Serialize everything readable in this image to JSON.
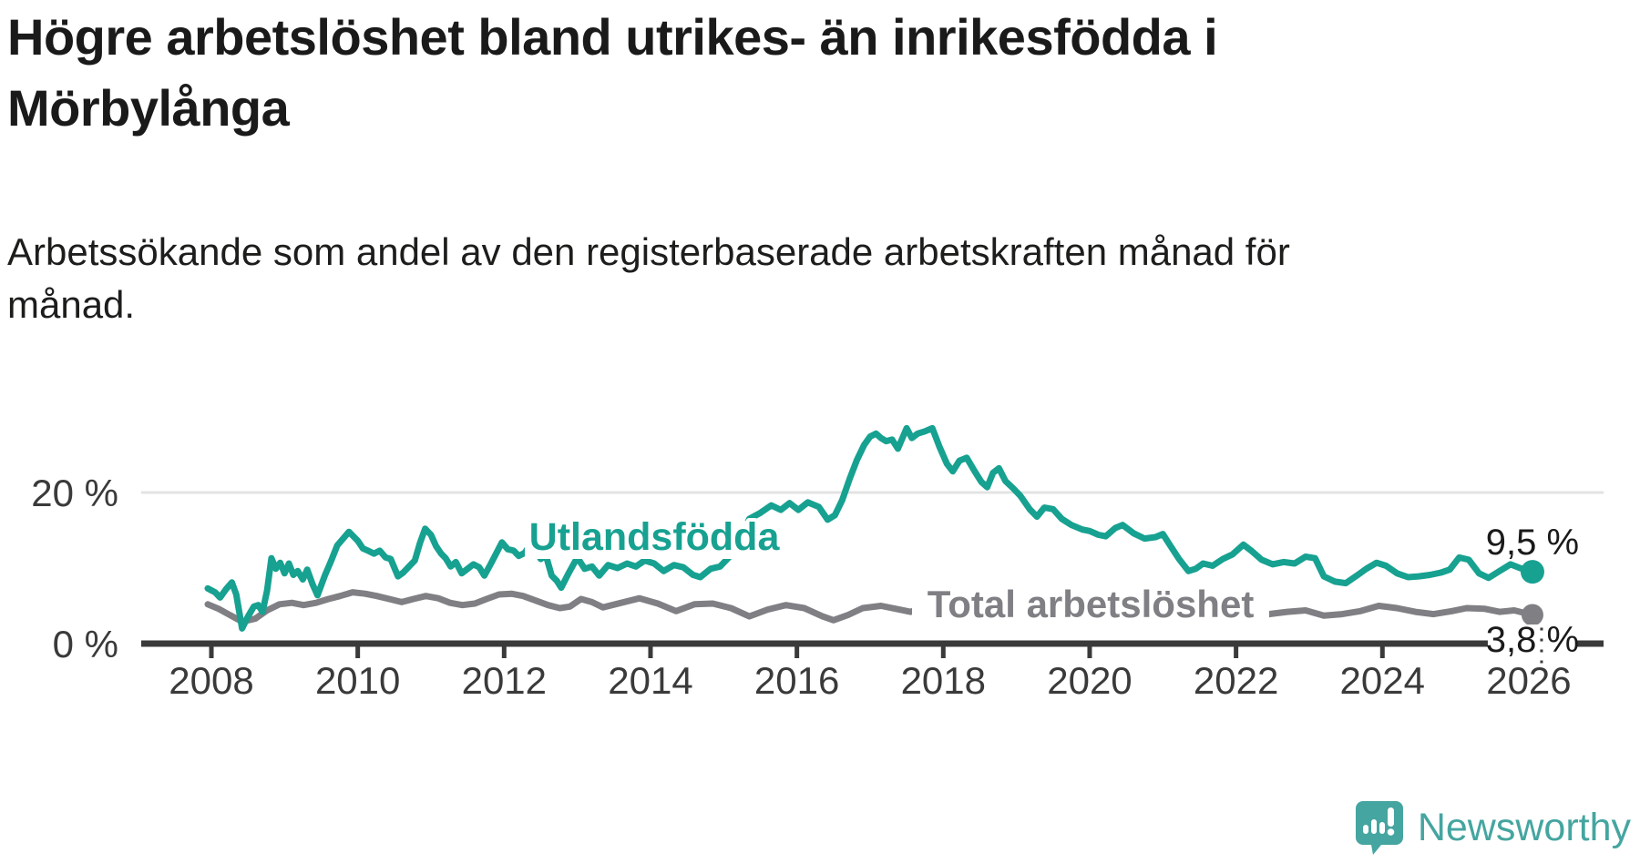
{
  "title_lines": [
    "Högre arbetslöshet bland utrikes- än inrikesfödda i",
    "Mörbylånga"
  ],
  "subtitle_lines": [
    "Arbetssökande som andel av den registerbaserade arbetskraften månad för",
    "månad."
  ],
  "footer": {
    "brand": "Newsworthy",
    "logo_icon": "speech-bubble-bar-chart-exclamation"
  },
  "colors": {
    "title": "#1a1a1a",
    "subtitle": "#1d1d1b",
    "axis": "#3a3a3a",
    "grid": "#e3e3e3",
    "value_label": "#1a1a1a",
    "series_utlandsfodda": "#17a191",
    "series_total": "#7f7f84",
    "logo_teal": "#45a5a0",
    "background": "#ffffff"
  },
  "chart_data": {
    "type": "line",
    "title": "Högre arbetslöshet bland utrikes- än inrikesfödda i Mörbylånga",
    "subtitle": "Arbetssökande som andel av den registerbaserade arbetskraften månad för månad.",
    "unit": "%",
    "xlabel": "",
    "ylabel": "",
    "xlim": [
      2007.9,
      2027.0
    ],
    "ylim": [
      0,
      30
    ],
    "x_ticks": [
      2008,
      2010,
      2012,
      2014,
      2016,
      2018,
      2020,
      2022,
      2024,
      2026
    ],
    "y_ticks": [
      {
        "value": 0,
        "label": "0 %"
      },
      {
        "value": 20,
        "label": "20 %"
      }
    ],
    "y_gridlines": [
      20
    ],
    "legend_position": "inline-labels",
    "grid": true,
    "series": [
      {
        "name": "Utlandsfödda",
        "color": "#17a191",
        "end_value": 9.5,
        "end_label": "9,5 %",
        "points": [
          [
            2007.95,
            7.3
          ],
          [
            2008.05,
            6.8
          ],
          [
            2008.12,
            6.1
          ],
          [
            2008.2,
            7.2
          ],
          [
            2008.28,
            8.1
          ],
          [
            2008.34,
            6.5
          ],
          [
            2008.42,
            2.0
          ],
          [
            2008.5,
            3.6
          ],
          [
            2008.58,
            4.9
          ],
          [
            2008.64,
            5.1
          ],
          [
            2008.7,
            4.2
          ],
          [
            2008.76,
            7.0
          ],
          [
            2008.82,
            11.3
          ],
          [
            2008.88,
            9.9
          ],
          [
            2008.94,
            10.7
          ],
          [
            2009.0,
            9.3
          ],
          [
            2009.06,
            10.6
          ],
          [
            2009.12,
            9.1
          ],
          [
            2009.18,
            9.6
          ],
          [
            2009.25,
            8.5
          ],
          [
            2009.31,
            9.8
          ],
          [
            2009.38,
            7.9
          ],
          [
            2009.45,
            6.4
          ],
          [
            2009.55,
            9.0
          ],
          [
            2009.63,
            10.8
          ],
          [
            2009.72,
            13.0
          ],
          [
            2009.88,
            14.8
          ],
          [
            2010.0,
            13.6
          ],
          [
            2010.07,
            12.6
          ],
          [
            2010.14,
            12.3
          ],
          [
            2010.22,
            11.9
          ],
          [
            2010.3,
            12.3
          ],
          [
            2010.38,
            11.4
          ],
          [
            2010.45,
            11.2
          ],
          [
            2010.55,
            8.9
          ],
          [
            2010.62,
            9.4
          ],
          [
            2010.7,
            10.2
          ],
          [
            2010.78,
            11.0
          ],
          [
            2010.85,
            13.3
          ],
          [
            2010.92,
            15.2
          ],
          [
            2011.0,
            14.4
          ],
          [
            2011.07,
            12.9
          ],
          [
            2011.14,
            11.9
          ],
          [
            2011.2,
            11.3
          ],
          [
            2011.27,
            10.2
          ],
          [
            2011.34,
            10.8
          ],
          [
            2011.42,
            9.3
          ],
          [
            2011.5,
            9.9
          ],
          [
            2011.58,
            10.5
          ],
          [
            2011.66,
            10.1
          ],
          [
            2011.73,
            9.0
          ],
          [
            2011.82,
            10.6
          ],
          [
            2011.9,
            12.1
          ],
          [
            2011.97,
            13.4
          ],
          [
            2012.05,
            12.5
          ],
          [
            2012.13,
            12.3
          ],
          [
            2012.2,
            11.6
          ],
          [
            2012.28,
            12.0
          ],
          [
            2012.35,
            13.0
          ],
          [
            2012.42,
            12.6
          ],
          [
            2012.5,
            11.2
          ],
          [
            2012.57,
            11.7
          ],
          [
            2012.65,
            9.0
          ],
          [
            2012.72,
            8.3
          ],
          [
            2012.78,
            7.4
          ],
          [
            2012.88,
            9.3
          ],
          [
            2013.0,
            11.4
          ],
          [
            2013.1,
            9.9
          ],
          [
            2013.2,
            10.2
          ],
          [
            2013.3,
            9.0
          ],
          [
            2013.42,
            10.4
          ],
          [
            2013.55,
            10.0
          ],
          [
            2013.68,
            10.6
          ],
          [
            2013.8,
            10.2
          ],
          [
            2013.92,
            11.0
          ],
          [
            2014.05,
            10.6
          ],
          [
            2014.18,
            9.6
          ],
          [
            2014.32,
            10.4
          ],
          [
            2014.45,
            10.1
          ],
          [
            2014.58,
            9.1
          ],
          [
            2014.68,
            8.8
          ],
          [
            2014.82,
            9.9
          ],
          [
            2014.95,
            10.2
          ],
          [
            2015.08,
            11.5
          ],
          [
            2015.2,
            13.5
          ],
          [
            2015.35,
            16.5
          ],
          [
            2015.5,
            17.3
          ],
          [
            2015.65,
            18.3
          ],
          [
            2015.78,
            17.7
          ],
          [
            2015.9,
            18.6
          ],
          [
            2016.02,
            17.7
          ],
          [
            2016.15,
            18.7
          ],
          [
            2016.3,
            18.1
          ],
          [
            2016.42,
            16.4
          ],
          [
            2016.52,
            17.0
          ],
          [
            2016.62,
            19.0
          ],
          [
            2016.72,
            21.8
          ],
          [
            2016.82,
            24.3
          ],
          [
            2016.92,
            26.3
          ],
          [
            2017.0,
            27.4
          ],
          [
            2017.08,
            27.8
          ],
          [
            2017.15,
            27.2
          ],
          [
            2017.22,
            26.8
          ],
          [
            2017.3,
            27.0
          ],
          [
            2017.38,
            25.8
          ],
          [
            2017.5,
            28.5
          ],
          [
            2017.57,
            27.2
          ],
          [
            2017.65,
            27.8
          ],
          [
            2017.75,
            28.1
          ],
          [
            2017.85,
            28.5
          ],
          [
            2017.95,
            26.0
          ],
          [
            2018.05,
            23.8
          ],
          [
            2018.13,
            22.8
          ],
          [
            2018.22,
            24.2
          ],
          [
            2018.32,
            24.6
          ],
          [
            2018.43,
            22.8
          ],
          [
            2018.52,
            21.4
          ],
          [
            2018.6,
            20.7
          ],
          [
            2018.68,
            22.6
          ],
          [
            2018.76,
            23.2
          ],
          [
            2018.85,
            21.5
          ],
          [
            2018.95,
            20.6
          ],
          [
            2019.05,
            19.6
          ],
          [
            2019.18,
            17.8
          ],
          [
            2019.28,
            16.8
          ],
          [
            2019.38,
            18.0
          ],
          [
            2019.5,
            17.8
          ],
          [
            2019.62,
            16.5
          ],
          [
            2019.75,
            15.7
          ],
          [
            2019.9,
            15.1
          ],
          [
            2020.0,
            14.9
          ],
          [
            2020.12,
            14.4
          ],
          [
            2020.22,
            14.2
          ],
          [
            2020.35,
            15.3
          ],
          [
            2020.45,
            15.7
          ],
          [
            2020.6,
            14.6
          ],
          [
            2020.75,
            13.9
          ],
          [
            2020.9,
            14.1
          ],
          [
            2021.0,
            14.5
          ],
          [
            2021.1,
            13.0
          ],
          [
            2021.22,
            11.2
          ],
          [
            2021.35,
            9.6
          ],
          [
            2021.45,
            9.9
          ],
          [
            2021.55,
            10.6
          ],
          [
            2021.68,
            10.3
          ],
          [
            2021.82,
            11.2
          ],
          [
            2021.95,
            11.8
          ],
          [
            2022.1,
            13.1
          ],
          [
            2022.22,
            12.2
          ],
          [
            2022.35,
            11.1
          ],
          [
            2022.5,
            10.5
          ],
          [
            2022.65,
            10.8
          ],
          [
            2022.8,
            10.6
          ],
          [
            2022.95,
            11.5
          ],
          [
            2023.08,
            11.3
          ],
          [
            2023.2,
            8.9
          ],
          [
            2023.35,
            8.2
          ],
          [
            2023.5,
            8.0
          ],
          [
            2023.65,
            9.0
          ],
          [
            2023.78,
            9.9
          ],
          [
            2023.92,
            10.7
          ],
          [
            2024.05,
            10.3
          ],
          [
            2024.2,
            9.3
          ],
          [
            2024.35,
            8.8
          ],
          [
            2024.5,
            8.9
          ],
          [
            2024.65,
            9.1
          ],
          [
            2024.8,
            9.4
          ],
          [
            2024.92,
            9.8
          ],
          [
            2025.05,
            11.4
          ],
          [
            2025.18,
            11.1
          ],
          [
            2025.32,
            9.3
          ],
          [
            2025.45,
            8.7
          ],
          [
            2025.6,
            9.6
          ],
          [
            2025.75,
            10.5
          ],
          [
            2025.88,
            10.0
          ],
          [
            2026.05,
            9.5
          ]
        ]
      },
      {
        "name": "Total arbetslöshet",
        "color": "#7f7f84",
        "end_value": 3.8,
        "end_label": "3,8 %",
        "points": [
          [
            2007.95,
            5.2
          ],
          [
            2008.1,
            4.6
          ],
          [
            2008.25,
            3.8
          ],
          [
            2008.42,
            2.9
          ],
          [
            2008.6,
            3.3
          ],
          [
            2008.76,
            4.4
          ],
          [
            2008.93,
            5.2
          ],
          [
            2009.1,
            5.4
          ],
          [
            2009.26,
            5.1
          ],
          [
            2009.43,
            5.4
          ],
          [
            2009.6,
            5.9
          ],
          [
            2009.76,
            6.3
          ],
          [
            2009.93,
            6.8
          ],
          [
            2010.1,
            6.6
          ],
          [
            2010.26,
            6.3
          ],
          [
            2010.43,
            5.9
          ],
          [
            2010.6,
            5.5
          ],
          [
            2010.76,
            5.9
          ],
          [
            2010.93,
            6.3
          ],
          [
            2011.1,
            6.0
          ],
          [
            2011.26,
            5.4
          ],
          [
            2011.43,
            5.1
          ],
          [
            2011.6,
            5.3
          ],
          [
            2011.76,
            5.9
          ],
          [
            2011.93,
            6.5
          ],
          [
            2012.1,
            6.6
          ],
          [
            2012.26,
            6.3
          ],
          [
            2012.43,
            5.7
          ],
          [
            2012.6,
            5.1
          ],
          [
            2012.76,
            4.7
          ],
          [
            2012.9,
            4.9
          ],
          [
            2013.05,
            5.9
          ],
          [
            2013.2,
            5.5
          ],
          [
            2013.35,
            4.8
          ],
          [
            2013.6,
            5.4
          ],
          [
            2013.85,
            6.0
          ],
          [
            2014.1,
            5.3
          ],
          [
            2014.35,
            4.3
          ],
          [
            2014.6,
            5.2
          ],
          [
            2014.85,
            5.3
          ],
          [
            2015.1,
            4.7
          ],
          [
            2015.35,
            3.6
          ],
          [
            2015.6,
            4.5
          ],
          [
            2015.85,
            5.1
          ],
          [
            2016.1,
            4.7
          ],
          [
            2016.35,
            3.6
          ],
          [
            2016.5,
            3.1
          ],
          [
            2016.7,
            3.8
          ],
          [
            2016.9,
            4.7
          ],
          [
            2017.15,
            5.0
          ],
          [
            2017.4,
            4.5
          ],
          [
            2017.55,
            4.2
          ],
          [
            2017.75,
            4.8
          ],
          [
            2018.0,
            5.3
          ],
          [
            2018.3,
            5.0
          ],
          [
            2018.6,
            5.2
          ],
          [
            2018.9,
            5.0
          ],
          [
            2019.2,
            5.3
          ],
          [
            2019.5,
            5.0
          ],
          [
            2019.8,
            4.8
          ],
          [
            2020.1,
            5.2
          ],
          [
            2020.4,
            5.0
          ],
          [
            2020.7,
            4.7
          ],
          [
            2021.0,
            4.8
          ],
          [
            2021.3,
            4.4
          ],
          [
            2021.6,
            4.0
          ],
          [
            2021.9,
            3.8
          ],
          [
            2022.2,
            3.9
          ],
          [
            2022.45,
            3.9
          ],
          [
            2022.7,
            4.2
          ],
          [
            2022.95,
            4.4
          ],
          [
            2023.2,
            3.7
          ],
          [
            2023.45,
            3.9
          ],
          [
            2023.7,
            4.3
          ],
          [
            2023.95,
            5.0
          ],
          [
            2024.2,
            4.7
          ],
          [
            2024.45,
            4.2
          ],
          [
            2024.7,
            3.9
          ],
          [
            2024.95,
            4.3
          ],
          [
            2025.15,
            4.7
          ],
          [
            2025.4,
            4.6
          ],
          [
            2025.6,
            4.2
          ],
          [
            2025.8,
            4.4
          ],
          [
            2026.05,
            3.8
          ]
        ]
      }
    ]
  }
}
